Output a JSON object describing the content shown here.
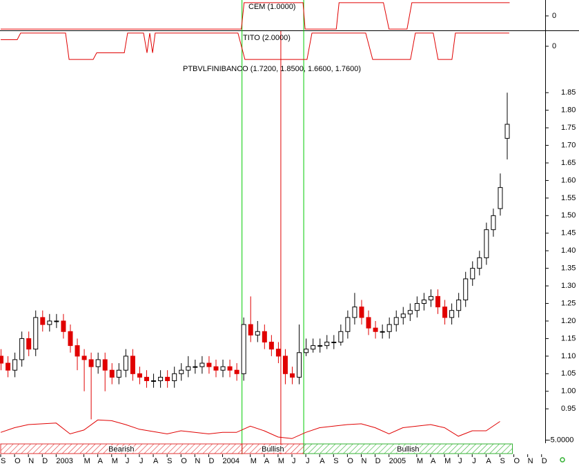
{
  "chart_data": [
    {
      "type": "step",
      "title": "CEM (1.0000)",
      "color": "#e00000",
      "x": [
        0,
        17.35,
        17.55,
        21.8,
        21.95,
        24.2,
        24.4,
        27.6,
        28.0,
        29.3,
        29.65,
        36.7
      ],
      "values": [
        -1,
        -1,
        1,
        1,
        -1,
        -1,
        1,
        1,
        -1,
        -1,
        1,
        1
      ],
      "ylim": [
        -1.1,
        1.1
      ],
      "yticks": [
        0
      ]
    },
    {
      "type": "step",
      "title": "TITO (2.0000)",
      "color": "#e00000",
      "x": [
        0,
        1.19,
        1.44,
        4.68,
        4.93,
        6.67,
        6.92,
        8.91,
        9.15,
        10.3,
        10.55,
        10.75,
        10.95,
        11.14,
        17.11,
        17.61,
        22.09,
        22.44,
        26.32,
        26.82,
        29.55,
        29.9,
        31.19,
        31.54,
        32.54,
        32.79,
        36.67
      ],
      "values": [
        0.5,
        0.5,
        1,
        1,
        -1,
        -1,
        -0.5,
        -0.5,
        1,
        1,
        -0.5,
        1,
        -0.5,
        1,
        1,
        -1,
        -1,
        1,
        1,
        -1,
        -1,
        1,
        1,
        -1,
        -1,
        1,
        1
      ],
      "ylim": [
        -1.1,
        1.1
      ],
      "yticks": [
        0
      ]
    },
    {
      "type": "candlestick",
      "title": "PTBVLFINIBANCO (1.7200, 1.8500, 1.6600, 1.7600)",
      "up_color": "#ffffff",
      "down_color": "#e00000",
      "x": [
        0,
        0.5,
        1,
        1.5,
        2,
        2.5,
        3,
        3.5,
        4,
        4.5,
        5,
        5.5,
        6,
        6.5,
        7,
        7.5,
        8,
        8.5,
        9,
        9.5,
        10,
        10.5,
        11,
        11.5,
        12,
        12.5,
        13,
        13.5,
        14,
        14.5,
        15,
        15.5,
        16,
        16.5,
        17,
        17.5,
        18,
        18.5,
        19,
        19.5,
        20,
        20.5,
        21,
        21.5,
        22,
        22.5,
        23,
        23.5,
        24,
        24.5,
        25,
        25.5,
        26,
        26.5,
        27,
        27.5,
        28,
        28.5,
        29,
        29.5,
        30,
        30.5,
        31,
        31.5,
        32,
        32.5,
        33,
        33.5,
        34,
        34.5,
        35,
        35.5,
        36,
        36.5
      ],
      "open": [
        1.1,
        1.08,
        1.06,
        1.09,
        1.15,
        1.12,
        1.21,
        1.19,
        1.2,
        1.2,
        1.17,
        1.13,
        1.1,
        1.09,
        1.07,
        1.09,
        1.06,
        1.04,
        1.06,
        1.1,
        1.05,
        1.04,
        1.03,
        1.03,
        1.04,
        1.03,
        1.05,
        1.06,
        1.07,
        1.07,
        1.08,
        1.07,
        1.06,
        1.07,
        1.06,
        1.05,
        1.19,
        1.16,
        1.17,
        1.14,
        1.12,
        1.1,
        1.05,
        1.04,
        1.11,
        1.12,
        1.13,
        1.13,
        1.14,
        1.14,
        1.17,
        1.21,
        1.24,
        1.21,
        1.18,
        1.17,
        1.17,
        1.19,
        1.21,
        1.22,
        1.23,
        1.25,
        1.26,
        1.27,
        1.24,
        1.21,
        1.23,
        1.26,
        1.32,
        1.35,
        1.38,
        1.46,
        1.52,
        1.72
      ],
      "high": [
        1.12,
        1.1,
        1.11,
        1.17,
        1.17,
        1.23,
        1.23,
        1.22,
        1.22,
        1.22,
        1.19,
        1.15,
        1.12,
        1.11,
        1.11,
        1.11,
        1.08,
        1.08,
        1.12,
        1.12,
        1.07,
        1.06,
        1.05,
        1.06,
        1.06,
        1.07,
        1.08,
        1.1,
        1.09,
        1.1,
        1.1,
        1.09,
        1.09,
        1.09,
        1.08,
        1.21,
        1.27,
        1.2,
        1.19,
        1.16,
        1.14,
        1.12,
        1.07,
        1.19,
        1.15,
        1.15,
        1.15,
        1.16,
        1.16,
        1.19,
        1.23,
        1.28,
        1.26,
        1.23,
        1.2,
        1.19,
        1.21,
        1.23,
        1.24,
        1.25,
        1.27,
        1.28,
        1.29,
        1.29,
        1.26,
        1.25,
        1.28,
        1.34,
        1.37,
        1.4,
        1.48,
        1.52,
        1.62,
        1.85
      ],
      "low": [
        1.06,
        1.04,
        1.04,
        1.07,
        1.1,
        1.1,
        1.17,
        1.17,
        1.18,
        1.15,
        1.11,
        1.06,
        1.0,
        0.92,
        1.05,
        1.0,
        1.02,
        1.02,
        1.04,
        1.03,
        1.02,
        1.01,
        1.01,
        1.01,
        1.01,
        1.01,
        1.03,
        1.04,
        1.05,
        1.05,
        1.05,
        1.04,
        1.04,
        1.04,
        1.03,
        1.03,
        1.14,
        1.14,
        1.12,
        1.1,
        1.08,
        1.02,
        1.02,
        1.02,
        1.1,
        1.11,
        1.11,
        1.12,
        1.12,
        1.13,
        1.15,
        1.19,
        1.19,
        1.16,
        1.15,
        1.15,
        1.15,
        1.17,
        1.19,
        1.2,
        1.21,
        1.23,
        1.24,
        1.22,
        1.19,
        1.19,
        1.21,
        1.24,
        1.3,
        1.33,
        1.36,
        1.44,
        1.5,
        1.66
      ],
      "close": [
        1.08,
        1.06,
        1.09,
        1.15,
        1.12,
        1.21,
        1.19,
        1.2,
        1.2,
        1.17,
        1.13,
        1.1,
        1.09,
        1.07,
        1.09,
        1.06,
        1.04,
        1.06,
        1.1,
        1.05,
        1.04,
        1.03,
        1.03,
        1.04,
        1.03,
        1.05,
        1.06,
        1.07,
        1.07,
        1.08,
        1.07,
        1.06,
        1.07,
        1.06,
        1.05,
        1.19,
        1.16,
        1.17,
        1.14,
        1.12,
        1.1,
        1.05,
        1.04,
        1.11,
        1.12,
        1.13,
        1.13,
        1.14,
        1.14,
        1.17,
        1.21,
        1.24,
        1.21,
        1.18,
        1.17,
        1.17,
        1.19,
        1.21,
        1.22,
        1.23,
        1.25,
        1.26,
        1.27,
        1.24,
        1.21,
        1.23,
        1.26,
        1.32,
        1.35,
        1.38,
        1.46,
        1.5,
        1.58,
        1.76
      ],
      "ylim": [
        0.915,
        1.933
      ],
      "yticks": [
        {
          "value": 0.95,
          "label": "0.95"
        },
        {
          "value": 1.0,
          "label": "1.00"
        },
        {
          "value": 1.05,
          "label": "1.05"
        },
        {
          "value": 1.1,
          "label": "1.10"
        },
        {
          "value": 1.15,
          "label": "1.15"
        },
        {
          "value": 1.2,
          "label": "1.20"
        },
        {
          "value": 1.25,
          "label": "1.25"
        },
        {
          "value": 1.3,
          "label": "1.30"
        },
        {
          "value": 1.35,
          "label": "1.35"
        },
        {
          "value": 1.4,
          "label": "1.40"
        },
        {
          "value": 1.45,
          "label": "1.45"
        },
        {
          "value": 1.5,
          "label": "1.50"
        },
        {
          "value": 1.55,
          "label": "1.55"
        },
        {
          "value": 1.6,
          "label": "1.60"
        },
        {
          "value": 1.65,
          "label": "1.65"
        },
        {
          "value": 1.7,
          "label": "1.70"
        },
        {
          "value": 1.75,
          "label": "1.75"
        },
        {
          "value": 1.8,
          "label": "1.80"
        },
        {
          "value": 1.85,
          "label": "1.85"
        }
      ]
    },
    {
      "type": "line",
      "color": "#e00000",
      "x": [
        0,
        1,
        2,
        3,
        4,
        5,
        6,
        7,
        8,
        9,
        10,
        11,
        12,
        13,
        14,
        15,
        16,
        17,
        18,
        19,
        20,
        21,
        22,
        23,
        24,
        25,
        26,
        27,
        28,
        29,
        30,
        31,
        32,
        33,
        34,
        35,
        36
      ],
      "values": [
        -2.5,
        -1,
        0,
        0.25,
        0.5,
        -3,
        -1.75,
        1.5,
        1.25,
        0,
        -1.5,
        -2.25,
        -3,
        -2,
        -2.5,
        -3,
        -2.5,
        -2.5,
        -0.5,
        -2,
        -4,
        -4.5,
        -2.5,
        -1,
        -0.5,
        0,
        0.25,
        -1,
        -3,
        -1,
        -0.5,
        0,
        -1,
        -3.75,
        -2,
        -2,
        1
      ],
      "ylim": [
        -6,
        2
      ],
      "yticks": [
        {
          "value": -5,
          "label": "-5.0000"
        }
      ]
    }
  ],
  "xaxis": {
    "xlim": [
      0,
      41.7
    ],
    "xticks": [
      {
        "value": 0,
        "label": "S"
      },
      {
        "value": 1,
        "label": "O"
      },
      {
        "value": 2,
        "label": "N"
      },
      {
        "value": 3,
        "label": "D"
      },
      {
        "value": 4,
        "label": "2003"
      },
      {
        "value": 6,
        "label": "M"
      },
      {
        "value": 7,
        "label": "A"
      },
      {
        "value": 8,
        "label": "M"
      },
      {
        "value": 9,
        "label": "J"
      },
      {
        "value": 10,
        "label": "J"
      },
      {
        "value": 11,
        "label": "A"
      },
      {
        "value": 12,
        "label": "S"
      },
      {
        "value": 13,
        "label": "O"
      },
      {
        "value": 14,
        "label": "N"
      },
      {
        "value": 15,
        "label": "D"
      },
      {
        "value": 16,
        "label": "2004"
      },
      {
        "value": 18,
        "label": "M"
      },
      {
        "value": 19,
        "label": "A"
      },
      {
        "value": 20,
        "label": "M"
      },
      {
        "value": 21,
        "label": "J"
      },
      {
        "value": 22,
        "label": "J"
      },
      {
        "value": 23,
        "label": "A"
      },
      {
        "value": 24,
        "label": "S"
      },
      {
        "value": 25,
        "label": "O"
      },
      {
        "value": 26,
        "label": "N"
      },
      {
        "value": 27,
        "label": "D"
      },
      {
        "value": 28,
        "label": "2005"
      },
      {
        "value": 30,
        "label": "M"
      },
      {
        "value": 31,
        "label": "A"
      },
      {
        "value": 32,
        "label": "M"
      },
      {
        "value": 33,
        "label": "J"
      },
      {
        "value": 34,
        "label": "J"
      },
      {
        "value": 35,
        "label": "A"
      },
      {
        "value": 36,
        "label": "S"
      },
      {
        "value": 37,
        "label": "O"
      },
      {
        "value": 38,
        "label": "N"
      },
      {
        "value": 39,
        "label": "D"
      }
    ]
  },
  "markers": [
    {
      "x": 17.4,
      "color": "#00cc00"
    },
    {
      "x": 20.2,
      "color": "#e00000"
    },
    {
      "x": 21.85,
      "color": "#00cc00"
    }
  ],
  "regions": [
    {
      "label": "Bearish",
      "from": 0,
      "to": 17.4,
      "color": "#e03030"
    },
    {
      "label": "Bullish",
      "from": 17.4,
      "to": 21.85,
      "color": "#e03030"
    },
    {
      "label": "Bullish",
      "from": 21.85,
      "to": 36.9,
      "color": "#30b030"
    }
  ]
}
